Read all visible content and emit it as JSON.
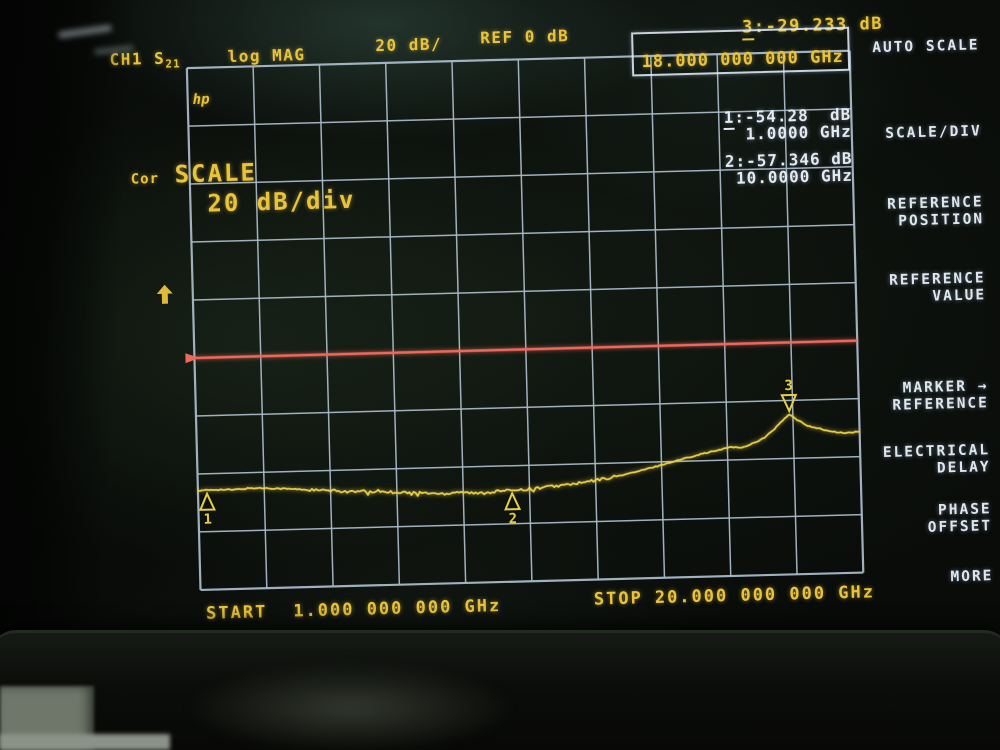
{
  "header": {
    "channel": "CH1",
    "s_param_base": "S",
    "s_param_sub": "21",
    "format": "log MAG",
    "scale": "20 dB/",
    "reference": "REF 0 dB",
    "marker_readout_num": "3",
    "marker_readout_rest": ":-29.233 dB"
  },
  "active_entry": "18.000 000 000 GHz",
  "marker_panel": {
    "m1_num": "1",
    "m1_rest": ":-54.28  dB",
    "m1_freq": "1.0000 GHz",
    "m2_line": "2:-57.346 dB",
    "m2_freq": "10.0000 GHz"
  },
  "annunciators": {
    "cor": "Cor",
    "logo": "hp",
    "scale_title": "SCALE",
    "scale_value": "20 dB/div"
  },
  "stimulus": {
    "start_label": "START",
    "start_value": "1.000 000 000 GHz",
    "stop_label": "STOP",
    "stop_value": "20.000 000 000 GHz"
  },
  "softkeys": [
    {
      "label": "AUTO SCALE"
    },
    {
      "label": "SCALE/DIV"
    },
    {
      "label": "REFERENCE\nPOSITION"
    },
    {
      "label": "REFERENCE\nVALUE"
    },
    {
      "label": "MARKER →\nREFERENCE"
    },
    {
      "label": "ELECTRICAL\nDELAY"
    },
    {
      "label": "PHASE\nOFFSET"
    },
    {
      "label": "MORE"
    }
  ],
  "colors": {
    "trace": "#e6cf45",
    "text_yellow": "#eac33c",
    "text_white": "#e4eaef",
    "grid": "#a8b9c8",
    "ref_line": "#f0685c"
  },
  "chart_data": {
    "type": "line",
    "title": "CH1 S21 log MAG",
    "x_unit": "GHz",
    "y_unit": "dB",
    "x_range": [
      1,
      20
    ],
    "scale_db_per_div": 20,
    "ref_db": 0,
    "ref_position_row": 5,
    "grid": {
      "cols": 10,
      "rows": 9
    },
    "x": [
      1,
      1.5,
      2,
      2.5,
      3,
      3.5,
      4,
      4.5,
      5,
      5.5,
      6,
      6.5,
      7,
      7.5,
      8,
      8.5,
      9,
      9.5,
      10,
      10.5,
      11,
      11.5,
      12,
      12.5,
      13,
      13.5,
      14,
      14.5,
      15,
      15.5,
      16,
      16.3,
      16.6,
      17,
      17.3,
      17.6,
      18,
      18.2,
      18.5,
      18.8,
      19.2,
      19.6,
      20
    ],
    "values": [
      -54.28,
      -53.9,
      -54.2,
      -53.7,
      -53.9,
      -54.3,
      -54.8,
      -55.4,
      -55.8,
      -56.4,
      -56.1,
      -56.8,
      -57.1,
      -57.5,
      -58.1,
      -57.3,
      -58.4,
      -57.7,
      -57.346,
      -57.0,
      -56.4,
      -55.8,
      -55.1,
      -54.0,
      -52.8,
      -51.4,
      -49.7,
      -47.9,
      -46.1,
      -44.4,
      -43.1,
      -41.9,
      -42.6,
      -40.4,
      -38.4,
      -34.6,
      -29.233,
      -31.6,
      -34.1,
      -35.3,
      -36.9,
      -37.6,
      -37.1
    ],
    "markers": [
      {
        "n": "1",
        "freq_ghz": 1.0,
        "db": -54.28,
        "label_side": "below"
      },
      {
        "n": "2",
        "freq_ghz": 10.0,
        "db": -57.346,
        "label_side": "below"
      },
      {
        "n": "3",
        "freq_ghz": 18.0,
        "db": -29.233,
        "label_side": "above"
      }
    ]
  }
}
